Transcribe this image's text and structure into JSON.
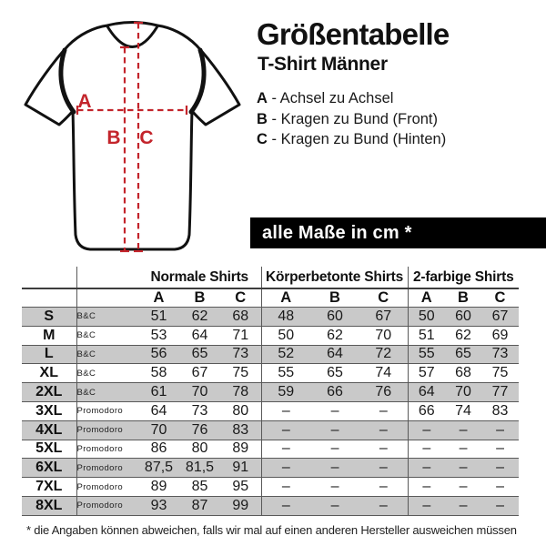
{
  "title": {
    "heading": "Größentabelle",
    "subheading": "T-Shirt Männer"
  },
  "diagram": {
    "labels": {
      "a": "A",
      "b": "B",
      "c": "C"
    },
    "accent_red": "#c3242b",
    "outline_color": "#111111"
  },
  "legend": {
    "items": [
      {
        "key": "A",
        "desc": "- Achsel zu Achsel"
      },
      {
        "key": "B",
        "desc": "- Kragen zu Bund (Front)"
      },
      {
        "key": "C",
        "desc": "- Kragen zu Bund (Hinten)"
      }
    ]
  },
  "banner": {
    "text": "alle Maße in cm *",
    "bg": "#000000",
    "fg": "#ffffff"
  },
  "table": {
    "group_headers": [
      "Normale Shirts",
      "Körperbetonte Shirts",
      "2-farbige Shirts"
    ],
    "measure_headers": [
      "A",
      "B",
      "C"
    ],
    "rows": [
      {
        "size": "S",
        "brand": "B&C",
        "values": [
          "51",
          "62",
          "68",
          "48",
          "60",
          "67",
          "50",
          "60",
          "67"
        ]
      },
      {
        "size": "M",
        "brand": "B&C",
        "values": [
          "53",
          "64",
          "71",
          "50",
          "62",
          "70",
          "51",
          "62",
          "69"
        ]
      },
      {
        "size": "L",
        "brand": "B&C",
        "values": [
          "56",
          "65",
          "73",
          "52",
          "64",
          "72",
          "55",
          "65",
          "73"
        ]
      },
      {
        "size": "XL",
        "brand": "B&C",
        "values": [
          "58",
          "67",
          "75",
          "55",
          "65",
          "74",
          "57",
          "68",
          "75"
        ]
      },
      {
        "size": "2XL",
        "brand": "B&C",
        "values": [
          "61",
          "70",
          "78",
          "59",
          "66",
          "76",
          "64",
          "70",
          "77"
        ]
      },
      {
        "size": "3XL",
        "brand": "Promodoro",
        "values": [
          "64",
          "73",
          "80",
          "–",
          "–",
          "–",
          "66",
          "74",
          "83"
        ]
      },
      {
        "size": "4XL",
        "brand": "Promodoro",
        "values": [
          "70",
          "76",
          "83",
          "–",
          "–",
          "–",
          "–",
          "–",
          "–"
        ]
      },
      {
        "size": "5XL",
        "brand": "Promodoro",
        "values": [
          "86",
          "80",
          "89",
          "–",
          "–",
          "–",
          "–",
          "–",
          "–"
        ]
      },
      {
        "size": "6XL",
        "brand": "Promodoro",
        "values": [
          "87,5",
          "81,5",
          "91",
          "–",
          "–",
          "–",
          "–",
          "–",
          "–"
        ]
      },
      {
        "size": "7XL",
        "brand": "Promodoro",
        "values": [
          "89",
          "85",
          "95",
          "–",
          "–",
          "–",
          "–",
          "–",
          "–"
        ]
      },
      {
        "size": "8XL",
        "brand": "Promodoro",
        "values": [
          "93",
          "87",
          "99",
          "–",
          "–",
          "–",
          "–",
          "–",
          "–"
        ]
      }
    ],
    "row_alt_bg": "#c9c9c9",
    "grid_line_color": "#595959"
  },
  "footnote": "* die Angaben können abweichen, falls wir mal auf einen anderen Hersteller ausweichen müssen"
}
